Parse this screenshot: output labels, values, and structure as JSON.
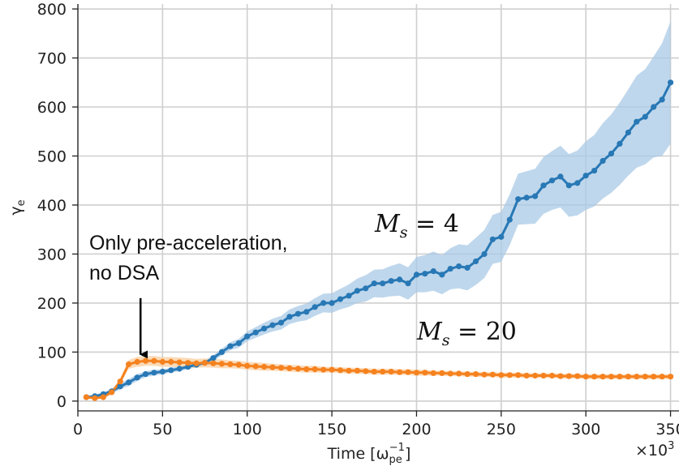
{
  "chart_data": {
    "type": "line",
    "title": "",
    "xlabel": "Time [ω_pe⁻¹]",
    "xlabel_parts": {
      "main": "Time [ω",
      "sub": "pe",
      "sup": "−1",
      "close": "]"
    },
    "ylabel": "γe",
    "ylabel_parts": {
      "main": "γ",
      "sub": "e"
    },
    "x_multiplier": "×10³",
    "x_multiplier_parts": {
      "main": "×10",
      "sup": "3"
    },
    "xlim": [
      0,
      355
    ],
    "ylim": [
      -20,
      810
    ],
    "xticks": [
      0,
      50,
      100,
      150,
      200,
      250,
      300,
      350
    ],
    "yticks": [
      0,
      100,
      200,
      300,
      400,
      500,
      600,
      700,
      800
    ],
    "grid": true,
    "series": [
      {
        "name": "M_s = 4",
        "color": "#2878b5",
        "band_color": "#a9c9e6",
        "x": [
          5,
          10,
          15,
          20,
          25,
          30,
          35,
          40,
          45,
          50,
          55,
          60,
          65,
          70,
          75,
          80,
          85,
          90,
          95,
          100,
          105,
          110,
          115,
          120,
          125,
          130,
          135,
          140,
          145,
          150,
          155,
          160,
          165,
          170,
          175,
          180,
          185,
          190,
          195,
          200,
          205,
          210,
          215,
          220,
          225,
          230,
          235,
          240,
          245,
          250,
          255,
          260,
          265,
          270,
          275,
          280,
          285,
          290,
          295,
          300,
          305,
          310,
          315,
          320,
          325,
          330,
          335,
          340,
          345,
          350
        ],
        "y": [
          8,
          10,
          14,
          20,
          30,
          38,
          48,
          55,
          58,
          60,
          63,
          66,
          70,
          74,
          78,
          88,
          100,
          112,
          118,
          132,
          140,
          148,
          155,
          160,
          172,
          178,
          182,
          192,
          200,
          200,
          208,
          215,
          225,
          230,
          240,
          240,
          245,
          248,
          240,
          258,
          260,
          265,
          258,
          270,
          275,
          272,
          285,
          300,
          330,
          335,
          370,
          412,
          415,
          418,
          440,
          450,
          458,
          440,
          445,
          460,
          470,
          490,
          505,
          525,
          548,
          570,
          580,
          600,
          615,
          650
        ],
        "y_low": [
          6,
          7,
          10,
          15,
          24,
          31,
          41,
          49,
          52,
          55,
          58,
          61,
          65,
          69,
          73,
          82,
          93,
          104,
          109,
          122,
          129,
          136,
          142,
          146,
          157,
          162,
          165,
          174,
          181,
          180,
          187,
          192,
          200,
          203,
          212,
          211,
          214,
          215,
          207,
          222,
          222,
          225,
          218,
          228,
          230,
          226,
          237,
          251,
          280,
          284,
          318,
          360,
          361,
          362,
          382,
          390,
          395,
          376,
          379,
          390,
          397,
          413,
          425,
          441,
          460,
          476,
          483,
          497,
          500,
          525
        ],
        "y_high": [
          10,
          13,
          18,
          25,
          36,
          45,
          55,
          61,
          64,
          65,
          68,
          71,
          75,
          79,
          83,
          94,
          107,
          120,
          127,
          142,
          151,
          160,
          168,
          174,
          187,
          194,
          199,
          210,
          219,
          220,
          229,
          238,
          250,
          257,
          268,
          269,
          276,
          281,
          273,
          294,
          298,
          305,
          298,
          312,
          320,
          318,
          333,
          349,
          380,
          386,
          422,
          464,
          469,
          474,
          498,
          510,
          521,
          504,
          511,
          530,
          543,
          567,
          585,
          609,
          636,
          664,
          677,
          703,
          730,
          775
        ]
      },
      {
        "name": "M_s = 20",
        "color": "#f5821f",
        "band_color": "#f9cd9f",
        "x": [
          5,
          10,
          15,
          20,
          25,
          30,
          35,
          40,
          45,
          50,
          55,
          60,
          65,
          70,
          75,
          80,
          85,
          90,
          95,
          100,
          105,
          110,
          115,
          120,
          125,
          130,
          135,
          140,
          145,
          150,
          155,
          160,
          165,
          170,
          175,
          180,
          185,
          190,
          195,
          200,
          205,
          210,
          215,
          220,
          225,
          230,
          235,
          240,
          245,
          250,
          255,
          260,
          265,
          270,
          275,
          280,
          285,
          290,
          295,
          300,
          305,
          310,
          315,
          320,
          325,
          330,
          335,
          340,
          345,
          350
        ],
        "y": [
          8,
          6,
          8,
          18,
          40,
          75,
          80,
          82,
          82,
          80,
          80,
          79,
          78,
          77,
          78,
          77,
          76,
          75,
          74,
          72,
          71,
          70,
          69,
          68,
          67,
          66,
          65,
          65,
          64,
          64,
          63,
          62,
          62,
          61,
          60,
          60,
          60,
          59,
          59,
          58,
          58,
          57,
          57,
          56,
          56,
          55,
          55,
          54,
          54,
          53,
          53,
          53,
          52,
          52,
          52,
          52,
          51,
          51,
          51,
          50,
          50,
          50,
          50,
          50,
          50,
          50,
          50,
          50,
          50,
          50
        ],
        "y_low": [
          6,
          4,
          6,
          14,
          34,
          66,
          70,
          72,
          72,
          70,
          70,
          69,
          68,
          68,
          69,
          68,
          67,
          67,
          66,
          64,
          63,
          62,
          62,
          61,
          60,
          59,
          58,
          58,
          58,
          58,
          57,
          56,
          56,
          55,
          54,
          54,
          54,
          53,
          53,
          52,
          52,
          52,
          52,
          51,
          51,
          50,
          50,
          49,
          49,
          48,
          48,
          48,
          47,
          47,
          47,
          47,
          46,
          46,
          46,
          45,
          45,
          45,
          45,
          45,
          45,
          45,
          45,
          45,
          45,
          45
        ],
        "y_high": [
          10,
          8,
          10,
          22,
          46,
          84,
          90,
          92,
          92,
          90,
          90,
          89,
          88,
          86,
          87,
          86,
          85,
          83,
          82,
          80,
          79,
          78,
          76,
          75,
          74,
          73,
          72,
          72,
          70,
          70,
          69,
          68,
          68,
          67,
          66,
          66,
          66,
          65,
          65,
          64,
          64,
          62,
          62,
          61,
          61,
          60,
          60,
          59,
          59,
          58,
          58,
          58,
          57,
          57,
          57,
          57,
          56,
          56,
          56,
          55,
          55,
          55,
          55,
          55,
          55,
          55,
          55,
          55,
          55,
          55
        ]
      }
    ],
    "labels": {
      "ms4": {
        "main": "M",
        "sub": "s",
        "rest": " = 4"
      },
      "ms20": {
        "main": "M",
        "sub": "s",
        "rest": " = 20"
      }
    },
    "annotation": {
      "lines": [
        "Only pre-acceleration,",
        "no DSA"
      ],
      "arrow_to": {
        "x": 37,
        "y": 95
      },
      "arrow_from_y": 210
    }
  }
}
